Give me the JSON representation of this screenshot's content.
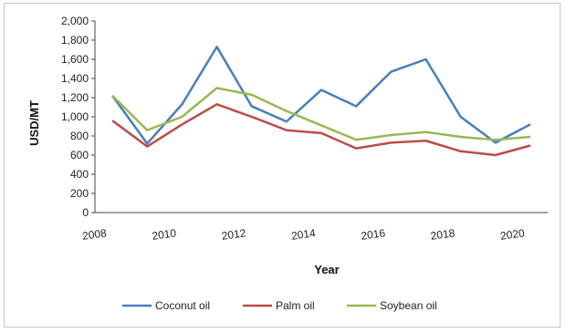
{
  "chart_data": {
    "type": "line",
    "title": "",
    "xlabel": "Year",
    "ylabel": "USD/MT",
    "x": [
      2008.5,
      2009.5,
      2010.5,
      2011.5,
      2012.5,
      2013.5,
      2014.5,
      2015.5,
      2016.5,
      2017.5,
      2018.5,
      2019.5,
      2020.5
    ],
    "xticks": [
      "2008",
      "2010",
      "2012",
      "2014",
      "2016",
      "2018",
      "2020"
    ],
    "ylim": [
      0,
      2000
    ],
    "yticks": [
      "0",
      "200",
      "400",
      "600",
      "800",
      "1,000",
      "1,200",
      "1,400",
      "1,600",
      "1,800",
      "2,000"
    ],
    "grid": false,
    "legend": "bottom",
    "series": [
      {
        "name": "Coconut oil",
        "color": "#4a7ebb",
        "values": [
          1220,
          720,
          1130,
          1730,
          1110,
          950,
          1280,
          1110,
          1470,
          1600,
          1000,
          730,
          920
        ]
      },
      {
        "name": "Palm oil",
        "color": "#be4b48",
        "values": [
          960,
          690,
          920,
          1130,
          1000,
          860,
          830,
          670,
          730,
          750,
          640,
          600,
          700
        ]
      },
      {
        "name": "Soybean oil",
        "color": "#98b954",
        "values": [
          1220,
          860,
          1000,
          1300,
          1230,
          1060,
          910,
          760,
          810,
          840,
          790,
          760,
          790
        ]
      }
    ]
  }
}
